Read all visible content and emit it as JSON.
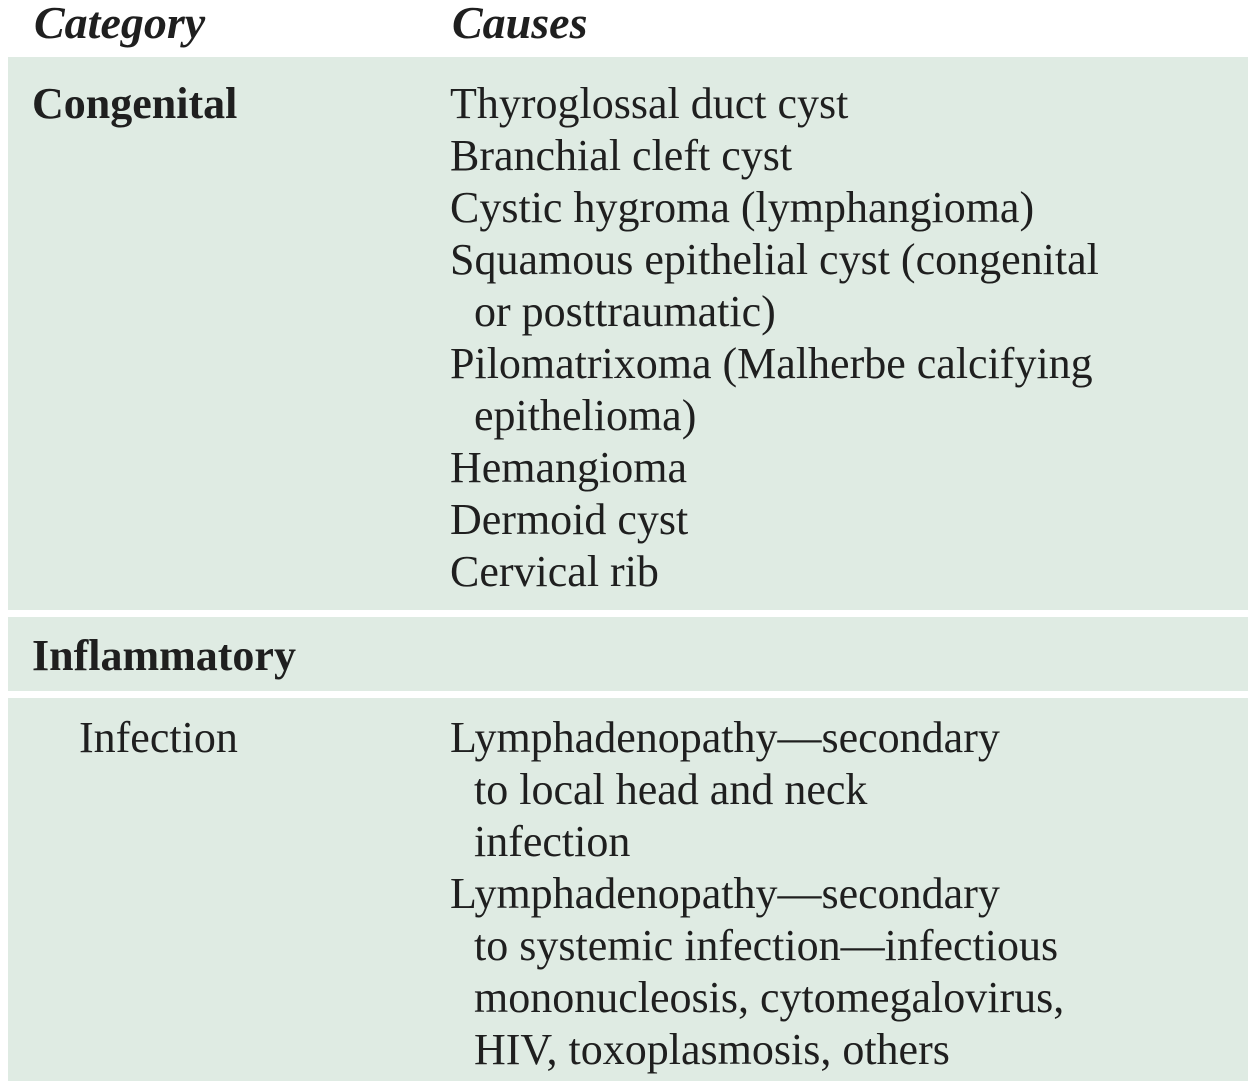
{
  "table": {
    "headers": {
      "category": "Category",
      "causes": "Causes"
    },
    "congenital": {
      "category": "Congenital",
      "causes": [
        [
          "Thyroglossal duct cyst"
        ],
        [
          "Branchial cleft cyst"
        ],
        [
          "Cystic hygroma (lymphangioma)"
        ],
        [
          "Squamous epithelial cyst (congenital",
          "or posttraumatic)"
        ],
        [
          "Pilomatrixoma (Malherbe calcifying",
          "epithelioma)"
        ],
        [
          "Hemangioma"
        ],
        [
          "Dermoid cyst"
        ],
        [
          "Cervical rib"
        ]
      ]
    },
    "inflammatory": {
      "category": "Inflammatory"
    },
    "infection": {
      "category": "Infection",
      "causes": [
        [
          "Lymphadenopathy—secondary",
          "to local head and neck",
          "infection"
        ],
        [
          "Lymphadenopathy—secondary",
          "to systemic infection—infectious",
          "mononucleosis, cytomegalovirus,",
          "HIV, toxoplasmosis, others"
        ]
      ]
    }
  },
  "colors": {
    "band": "#dfebe3",
    "text": "#1f1f1f",
    "background": "#ffffff"
  }
}
